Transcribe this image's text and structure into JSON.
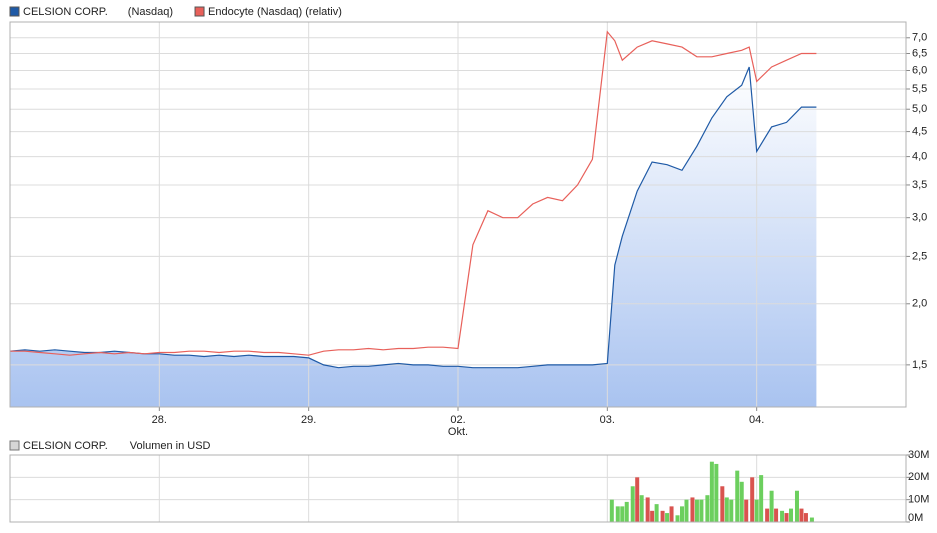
{
  "chart_data": [
    {
      "type": "line",
      "log_scale": true,
      "grid": true,
      "series": [
        {
          "name": "CELSION CORP.",
          "exchange": "(Nasdaq)",
          "color": "#1f5aa6",
          "area": true,
          "values": [
            1.6,
            1.61,
            1.6,
            1.61,
            1.6,
            1.59,
            1.59,
            1.6,
            1.59,
            1.58,
            1.58,
            1.57,
            1.57,
            1.56,
            1.57,
            1.56,
            1.57,
            1.56,
            1.56,
            1.56,
            1.55,
            1.5,
            1.48,
            1.49,
            1.49,
            1.5,
            1.51,
            1.5,
            1.5,
            1.49,
            1.49,
            1.48,
            1.48,
            1.48,
            1.48,
            1.49,
            1.5,
            1.5,
            1.5,
            1.5,
            1.51,
            2.4,
            2.75,
            3.4,
            3.9,
            3.85,
            3.75,
            4.2,
            4.8,
            5.3,
            5.6,
            6.1,
            4.1,
            4.6,
            4.7,
            5.05,
            5.05
          ]
        },
        {
          "name": "Endocyte (Nasdaq) (relativ)",
          "color": "#e8605a",
          "area": false,
          "values": [
            1.6,
            1.6,
            1.59,
            1.58,
            1.57,
            1.58,
            1.59,
            1.58,
            1.59,
            1.58,
            1.59,
            1.59,
            1.6,
            1.6,
            1.59,
            1.6,
            1.6,
            1.59,
            1.59,
            1.58,
            1.57,
            1.6,
            1.61,
            1.61,
            1.62,
            1.61,
            1.62,
            1.62,
            1.63,
            1.63,
            1.62,
            2.64,
            3.1,
            3.0,
            3.0,
            3.2,
            3.3,
            3.25,
            3.5,
            3.95,
            7.2,
            6.9,
            6.3,
            6.7,
            6.9,
            6.8,
            6.7,
            6.4,
            6.4,
            6.5,
            6.6,
            6.7,
            5.7,
            6.1,
            6.3,
            6.5,
            6.5
          ]
        }
      ],
      "x": [
        0,
        0.1,
        0.2,
        0.3,
        0.4,
        0.5,
        0.6,
        0.7,
        0.8,
        0.9,
        1.0,
        1.1,
        1.2,
        1.3,
        1.4,
        1.5,
        1.6,
        1.7,
        1.8,
        1.9,
        2.0,
        2.1,
        2.2,
        2.3,
        2.4,
        2.5,
        2.6,
        2.7,
        2.8,
        2.9,
        3.0,
        3.1,
        3.2,
        3.3,
        3.4,
        3.5,
        3.6,
        3.7,
        3.8,
        3.9,
        4.0,
        4.05,
        4.1,
        4.2,
        4.3,
        4.4,
        4.5,
        4.6,
        4.7,
        4.8,
        4.9,
        4.95,
        5.0,
        5.1,
        5.2,
        5.3,
        5.4
      ],
      "xlim": [
        0,
        6
      ],
      "xticks": [
        {
          "value": 1,
          "label": "28."
        },
        {
          "value": 2,
          "label": "29."
        },
        {
          "value": 3,
          "label": "02."
        },
        {
          "value": 4,
          "label": "03."
        },
        {
          "value": 5,
          "label": "04."
        }
      ],
      "month_label": "Okt.",
      "ylim": [
        1.23,
        7.54
      ],
      "yticks": [
        {
          "value": 1.5,
          "label": "1,5"
        },
        {
          "value": 2.0,
          "label": "2,0"
        },
        {
          "value": 2.5,
          "label": "2,5"
        },
        {
          "value": 3.0,
          "label": "3,0"
        },
        {
          "value": 3.5,
          "label": "3,5"
        },
        {
          "value": 4.0,
          "label": "4,0"
        },
        {
          "value": 4.5,
          "label": "4,5"
        },
        {
          "value": 5.0,
          "label": "5,0"
        },
        {
          "value": 5.5,
          "label": "5,5"
        },
        {
          "value": 6.0,
          "label": "6,0"
        },
        {
          "value": 6.5,
          "label": "6,5"
        },
        {
          "value": 7.0,
          "label": "7,0"
        }
      ]
    },
    {
      "type": "bar",
      "title": "Volumen in USD",
      "series_name": "CELSION CORP.",
      "grid": true,
      "x": [
        4.03,
        4.07,
        4.1,
        4.13,
        4.17,
        4.2,
        4.23,
        4.27,
        4.3,
        4.33,
        4.37,
        4.4,
        4.43,
        4.47,
        4.5,
        4.53,
        4.57,
        4.6,
        4.63,
        4.67,
        4.7,
        4.73,
        4.77,
        4.8,
        4.83,
        4.87,
        4.9,
        4.93,
        4.97,
        5.0,
        5.03,
        5.07,
        5.1,
        5.13,
        5.17,
        5.2,
        5.23,
        5.27,
        5.3,
        5.33,
        5.37
      ],
      "values": [
        10,
        7,
        7,
        9,
        16,
        20,
        12,
        11,
        5,
        8,
        5,
        4,
        7,
        3,
        7,
        10,
        11,
        10,
        10,
        12,
        27,
        26,
        16,
        11,
        10,
        23,
        18,
        10,
        20,
        10,
        21,
        6,
        14,
        6,
        5,
        4,
        6,
        14,
        6,
        4,
        2
      ],
      "colors": [
        "#6ccf5e",
        "#6ccf5e",
        "#6ccf5e",
        "#6ccf5e",
        "#6ccf5e",
        "#d9534f",
        "#6ccf5e",
        "#d9534f",
        "#d9534f",
        "#6ccf5e",
        "#d9534f",
        "#6ccf5e",
        "#d9534f",
        "#6ccf5e",
        "#6ccf5e",
        "#6ccf5e",
        "#d9534f",
        "#6ccf5e",
        "#6ccf5e",
        "#6ccf5e",
        "#6ccf5e",
        "#6ccf5e",
        "#d9534f",
        "#6ccf5e",
        "#6ccf5e",
        "#6ccf5e",
        "#6ccf5e",
        "#d9534f",
        "#d9534f",
        "#6ccf5e",
        "#6ccf5e",
        "#d9534f",
        "#6ccf5e",
        "#d9534f",
        "#6ccf5e",
        "#d9534f",
        "#6ccf5e",
        "#6ccf5e",
        "#d9534f",
        "#d9534f",
        "#6ccf5e"
      ],
      "xlim": [
        0,
        6
      ],
      "ylim": [
        0,
        30
      ],
      "yticks": [
        {
          "value": 0,
          "label": "0M"
        },
        {
          "value": 10,
          "label": "10M"
        },
        {
          "value": 20,
          "label": "20M"
        },
        {
          "value": 30,
          "label": "30M"
        }
      ]
    }
  ]
}
